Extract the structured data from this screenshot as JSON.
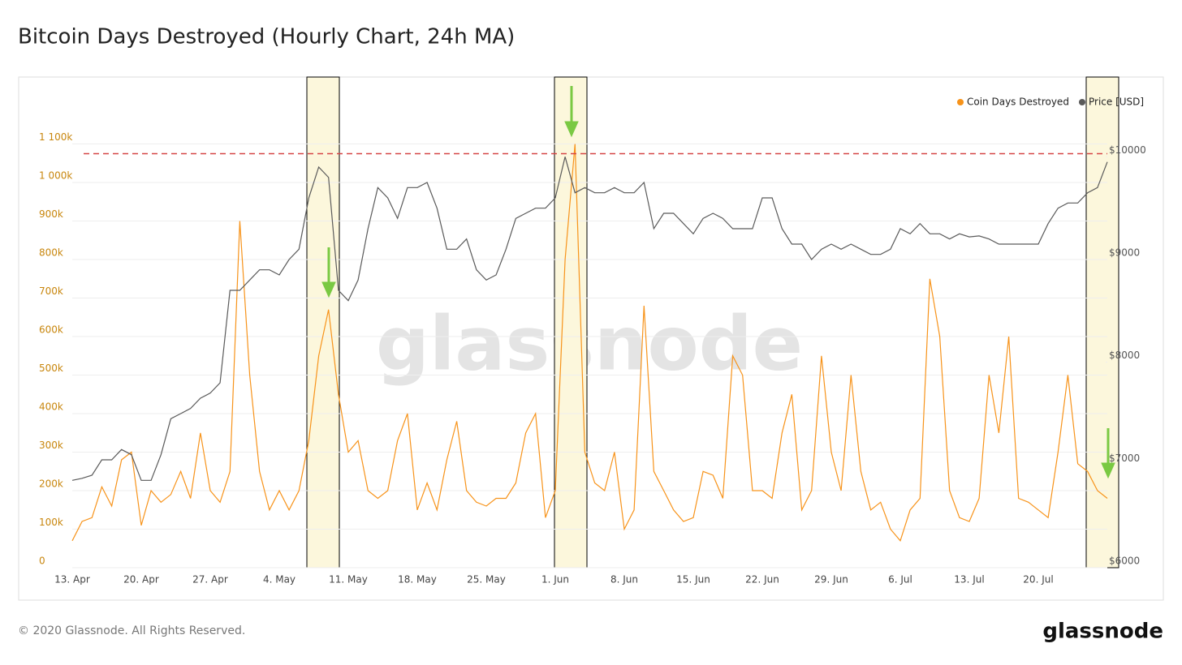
{
  "chart_data": {
    "type": "line",
    "title": "Bitcoin Days Destroyed (Hourly Chart, 24h MA)",
    "watermark": "glassnode",
    "footer": "© 2020 Glassnode. All Rights Reserved.",
    "logo": "glassnode",
    "categories": [
      "13. Apr",
      null,
      null,
      null,
      null,
      null,
      null,
      "20. Apr",
      null,
      null,
      null,
      null,
      null,
      null,
      "27. Apr",
      null,
      null,
      null,
      null,
      null,
      null,
      "4. May",
      null,
      null,
      null,
      null,
      null,
      null,
      "11. May",
      null,
      null,
      null,
      null,
      null,
      null,
      "18. May",
      null,
      null,
      null,
      null,
      null,
      null,
      "25. May",
      null,
      null,
      null,
      null,
      null,
      null,
      "1. Jun",
      null,
      null,
      null,
      null,
      null,
      null,
      "8. Jun",
      null,
      null,
      null,
      null,
      null,
      null,
      "15. Jun",
      null,
      null,
      null,
      null,
      null,
      null,
      "22. Jun",
      null,
      null,
      null,
      null,
      null,
      null,
      "29. Jun",
      null,
      null,
      null,
      null,
      null,
      null,
      "6. Jul",
      null,
      null,
      null,
      null,
      null,
      null,
      "13. Jul",
      null,
      null,
      null,
      null,
      null,
      null,
      "20. Jul",
      null,
      null,
      null,
      null,
      null,
      null,
      null
    ],
    "series": [
      {
        "name": "Coin Days Destroyed",
        "color": "#f7931a",
        "axis": "y",
        "values": [
          70000,
          120000,
          130000,
          210000,
          160000,
          280000,
          300000,
          110000,
          200000,
          170000,
          190000,
          250000,
          180000,
          350000,
          200000,
          170000,
          250000,
          900000,
          500000,
          250000,
          150000,
          200000,
          150000,
          200000,
          330000,
          550000,
          670000,
          450000,
          300000,
          330000,
          200000,
          180000,
          200000,
          330000,
          400000,
          150000,
          220000,
          150000,
          280000,
          380000,
          200000,
          170000,
          160000,
          180000,
          180000,
          220000,
          350000,
          400000,
          130000,
          200000,
          800000,
          1100000,
          300000,
          220000,
          200000,
          300000,
          100000,
          150000,
          680000,
          250000,
          200000,
          150000,
          120000,
          130000,
          250000,
          240000,
          180000,
          550000,
          500000,
          200000,
          200000,
          180000,
          350000,
          450000,
          150000,
          200000,
          550000,
          300000,
          200000,
          500000,
          250000,
          150000,
          170000,
          100000,
          70000,
          150000,
          180000,
          750000,
          600000,
          200000,
          130000,
          120000,
          180000,
          500000,
          350000,
          600000,
          180000,
          170000,
          150000,
          130000,
          300000,
          500000,
          270000,
          250000,
          200000,
          180000
        ]
      },
      {
        "name": "Price [USD]",
        "color": "#5a5a5a",
        "axis": "y2",
        "values": [
          6850,
          6870,
          6900,
          7050,
          7050,
          7150,
          7100,
          6850,
          6850,
          7100,
          7450,
          7500,
          7550,
          7650,
          7700,
          7800,
          8700,
          8700,
          8800,
          8900,
          8900,
          8850,
          9000,
          9100,
          9600,
          9900,
          9800,
          8700,
          8600,
          8800,
          9300,
          9700,
          9600,
          9400,
          9700,
          9700,
          9750,
          9500,
          9100,
          9100,
          9200,
          8900,
          8800,
          8850,
          9100,
          9400,
          9450,
          9500,
          9500,
          9600,
          10000,
          9650,
          9700,
          9650,
          9650,
          9700,
          9650,
          9650,
          9750,
          9300,
          9450,
          9450,
          9350,
          9250,
          9400,
          9450,
          9400,
          9300,
          9300,
          9300,
          9600,
          9600,
          9300,
          9150,
          9150,
          9000,
          9100,
          9150,
          9100,
          9150,
          9100,
          9050,
          9050,
          9100,
          9300,
          9250,
          9350,
          9250,
          9250,
          9200,
          9250,
          9220,
          9230,
          9200,
          9150,
          9150,
          9150,
          9150,
          9150,
          9350,
          9500,
          9550,
          9550,
          9650,
          9700,
          9950
        ]
      }
    ],
    "ylim": [
      0,
      1200000
    ],
    "yticks": [
      {
        "value": 0,
        "label": "0"
      },
      {
        "value": 100000,
        "label": "100k"
      },
      {
        "value": 200000,
        "label": "200k"
      },
      {
        "value": 300000,
        "label": "300k"
      },
      {
        "value": 400000,
        "label": "400k"
      },
      {
        "value": 500000,
        "label": "500k"
      },
      {
        "value": 600000,
        "label": "600k"
      },
      {
        "value": 700000,
        "label": "700k"
      },
      {
        "value": 800000,
        "label": "800k"
      },
      {
        "value": 900000,
        "label": "900k"
      },
      {
        "value": 1000000,
        "label": "1 000k"
      },
      {
        "value": 1100000,
        "label": "1 100k"
      }
    ],
    "y2lim": [
      6000,
      10500
    ],
    "y2ticks": [
      {
        "value": 6000,
        "label": "$6000"
      },
      {
        "value": 7000,
        "label": "$7000"
      },
      {
        "value": 8000,
        "label": "$8000"
      },
      {
        "value": 9000,
        "label": "$9000"
      },
      {
        "value": 10000,
        "label": "$10000"
      }
    ],
    "reference_line": {
      "value": 10030,
      "axis": "y2",
      "color": "#d64545"
    },
    "grid": true,
    "legend": "top-right"
  }
}
